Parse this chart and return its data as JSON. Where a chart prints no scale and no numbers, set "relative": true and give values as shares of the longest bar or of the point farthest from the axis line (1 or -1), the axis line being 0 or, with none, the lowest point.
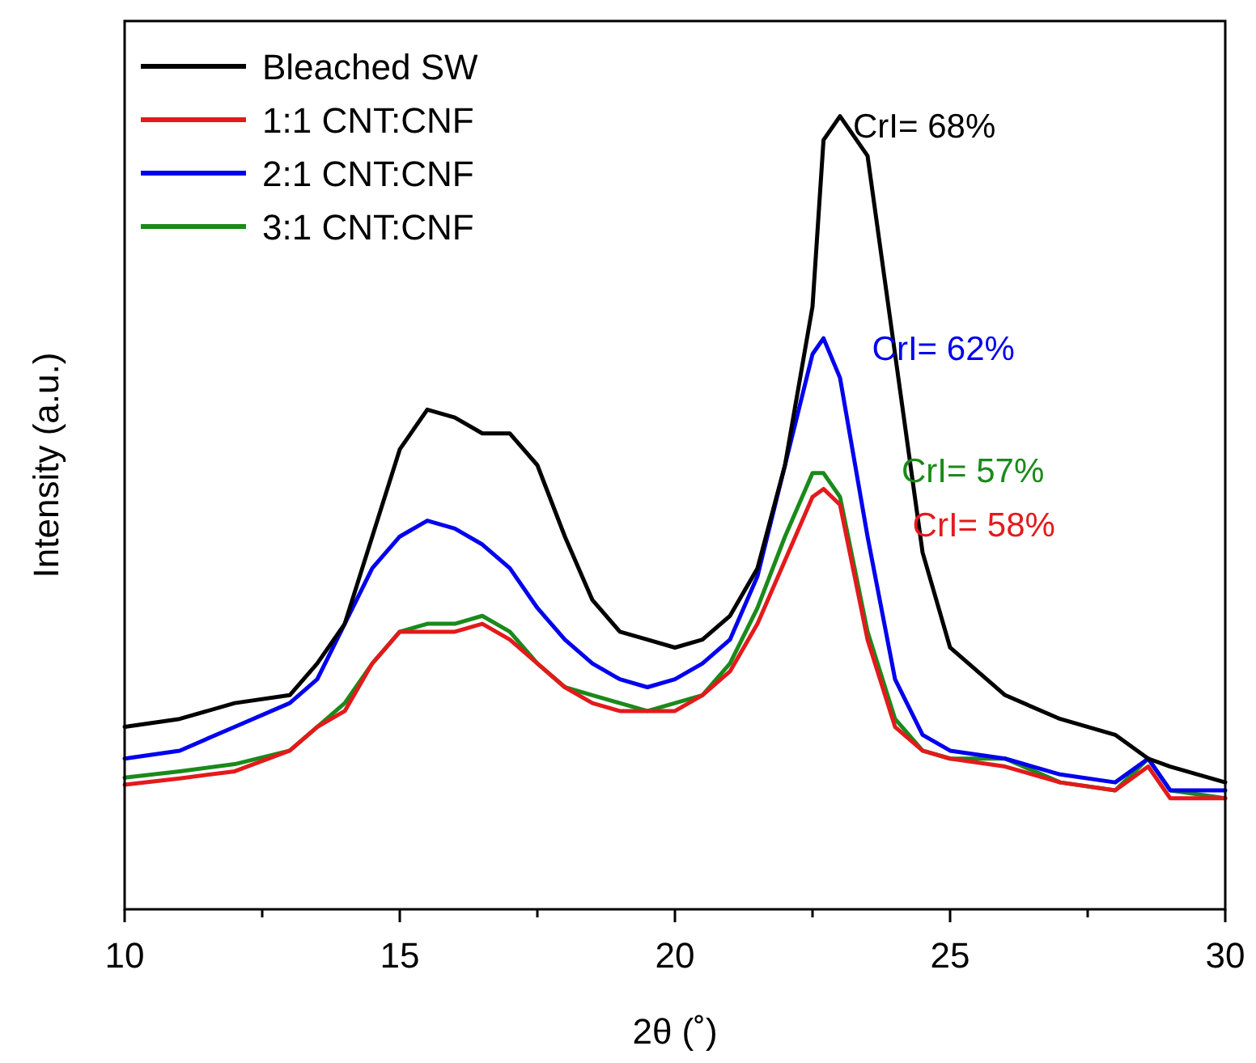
{
  "chart_data": {
    "type": "line",
    "relative": true,
    "xlabel": "2θ (˚)",
    "ylabel": "Intensity (a.u.)",
    "xlim": [
      10,
      30
    ],
    "xticks": [
      10,
      {
        "value": 12.5,
        "label": null
      },
      15,
      {
        "value": 17.5,
        "label": null
      },
      20,
      {
        "value": 22.5,
        "label": null
      },
      25,
      {
        "value": 27.5,
        "label": null
      },
      30
    ],
    "x": [
      10,
      11,
      12,
      13,
      13.5,
      14,
      14.5,
      15,
      15.5,
      16,
      16.5,
      17,
      17.5,
      18,
      18.5,
      19,
      19.5,
      20,
      20.5,
      21,
      21.5,
      22,
      22.5,
      22.7,
      23,
      23.5,
      24,
      24.5,
      25,
      26,
      27,
      28,
      28.6,
      29,
      30
    ],
    "legend": "top left",
    "grid": false,
    "line_style": "solid",
    "marker": "none",
    "series": [
      {
        "name": "Bleached SW",
        "color": "#000000",
        "values": [
          0.23,
          0.24,
          0.26,
          0.27,
          0.31,
          0.36,
          0.47,
          0.58,
          0.63,
          0.62,
          0.6,
          0.6,
          0.56,
          0.47,
          0.39,
          0.35,
          0.34,
          0.33,
          0.34,
          0.37,
          0.43,
          0.56,
          0.76,
          0.97,
          1,
          0.95,
          0.7,
          0.45,
          0.33,
          0.27,
          0.24,
          0.22,
          0.19,
          0.18,
          0.16
        ]
      },
      {
        "name": "1:1 CNT:CNF",
        "color": "#e31a1c",
        "values": [
          0.157,
          0.165,
          0.174,
          0.2,
          0.23,
          0.25,
          0.31,
          0.35,
          0.35,
          0.35,
          0.36,
          0.34,
          0.31,
          0.28,
          0.26,
          0.25,
          0.25,
          0.25,
          0.27,
          0.3,
          0.36,
          0.44,
          0.52,
          0.53,
          0.51,
          0.34,
          0.23,
          0.2,
          0.19,
          0.18,
          0.16,
          0.15,
          0.18,
          0.14,
          0.14
        ]
      },
      {
        "name": "2:1 CNT:CNF",
        "color": "#0000ee",
        "values": [
          0.19,
          0.2,
          0.23,
          0.26,
          0.29,
          0.36,
          0.43,
          0.47,
          0.49,
          0.48,
          0.46,
          0.43,
          0.38,
          0.34,
          0.31,
          0.29,
          0.28,
          0.29,
          0.31,
          0.34,
          0.42,
          0.56,
          0.7,
          0.72,
          0.67,
          0.47,
          0.29,
          0.22,
          0.2,
          0.19,
          0.17,
          0.16,
          0.19,
          0.15,
          0.15
        ]
      },
      {
        "name": "3:1 CNT:CNF",
        "color": "#1a8a1a",
        "values": [
          0.166,
          0.174,
          0.183,
          0.2,
          0.23,
          0.26,
          0.31,
          0.35,
          0.36,
          0.36,
          0.37,
          0.35,
          0.31,
          0.28,
          0.27,
          0.26,
          0.25,
          0.26,
          0.27,
          0.31,
          0.38,
          0.47,
          0.55,
          0.55,
          0.52,
          0.35,
          0.24,
          0.2,
          0.19,
          0.19,
          0.16,
          0.15,
          0.19,
          0.15,
          0.14
        ]
      }
    ],
    "annotations": [
      "CrI= 68%",
      "CrI= 62%",
      "CrI= 57%",
      "CrI= 58%"
    ]
  }
}
